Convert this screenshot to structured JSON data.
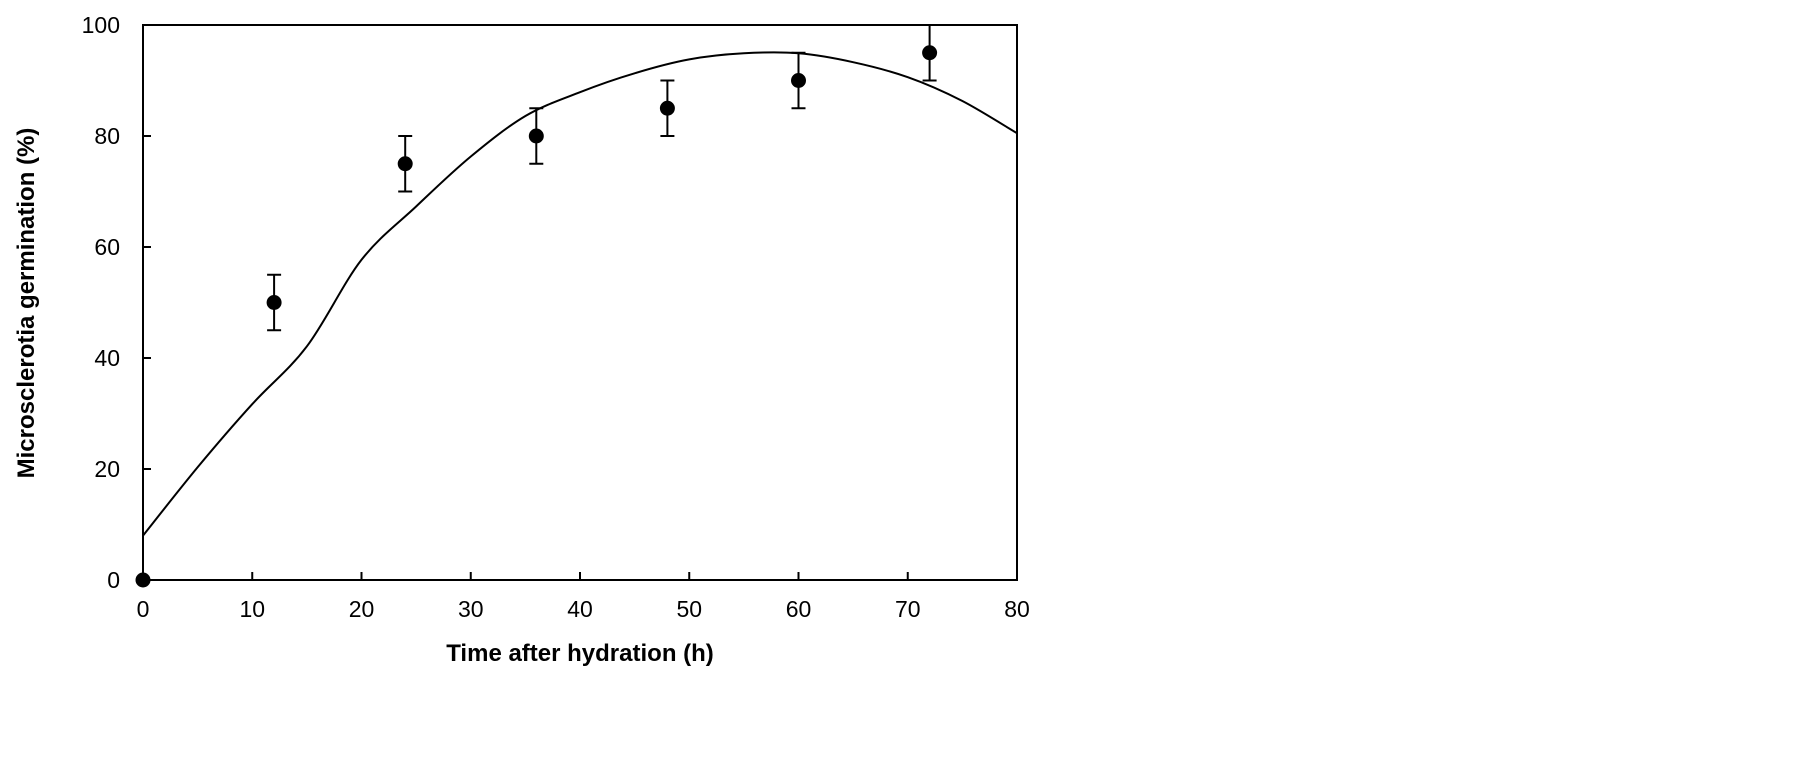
{
  "chart_data": {
    "type": "scatter",
    "xlabel": "Time after hydration (h)",
    "ylabel": "Microsclerotia germination (%)",
    "xlim": [
      0,
      80
    ],
    "ylim": [
      0,
      100
    ],
    "x_ticks": [
      0,
      10,
      20,
      30,
      40,
      50,
      60,
      70,
      80
    ],
    "y_ticks": [
      0,
      20,
      40,
      60,
      80,
      100
    ],
    "grid": false,
    "legend": "none",
    "colors": {
      "points": "#000000",
      "curve": "#000000",
      "axes": "#000000"
    },
    "series": [
      {
        "type": "scatter",
        "marker": "filled-circle",
        "x": [
          0,
          12,
          24,
          36,
          48,
          60,
          72
        ],
        "y": [
          0,
          50,
          75,
          80,
          85,
          90,
          95
        ],
        "error": [
          0,
          5,
          5,
          5,
          5,
          5,
          5
        ]
      },
      {
        "type": "line",
        "fit": "quadratic",
        "x": [
          0,
          5,
          10,
          15,
          20,
          25,
          30,
          35,
          40,
          45,
          50,
          55,
          60,
          65,
          70,
          75,
          80
        ],
        "y": [
          8,
          20.3,
          31.7,
          42.1,
          57.7,
          67.3,
          76.3,
          83.6,
          87.9,
          91.3,
          93.8,
          94.9,
          94.9,
          93.3,
          90.6,
          86.3,
          80.5
        ]
      }
    ]
  }
}
